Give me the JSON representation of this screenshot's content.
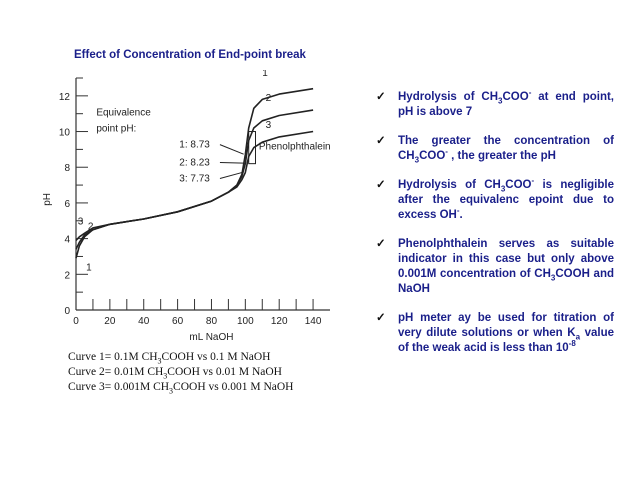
{
  "title": "Effect of Concentration of End-point break",
  "chart_data": {
    "type": "line",
    "xlabel": "mL NaOH",
    "ylabel": "pH",
    "xlim": [
      0,
      150
    ],
    "ylim": [
      0,
      13
    ],
    "x_ticks": [
      "0",
      "20",
      "40",
      "60",
      "80",
      "100",
      "120",
      "140"
    ],
    "y_ticks": [
      "0",
      "2",
      "4",
      "6",
      "8",
      "10",
      "12"
    ],
    "series": [
      {
        "name": "1",
        "x": [
          0,
          2,
          5,
          10,
          20,
          40,
          60,
          80,
          90,
          95,
          98,
          100,
          102,
          105,
          110,
          120,
          140
        ],
        "y": [
          2.9,
          3.6,
          4.1,
          4.5,
          4.8,
          5.1,
          5.5,
          6.1,
          6.6,
          7.0,
          7.6,
          8.7,
          10.2,
          11.3,
          11.8,
          12.1,
          12.4
        ]
      },
      {
        "name": "2",
        "x": [
          0,
          2,
          5,
          10,
          20,
          40,
          60,
          80,
          90,
          95,
          98,
          100,
          102,
          105,
          110,
          120,
          140
        ],
        "y": [
          3.4,
          3.8,
          4.2,
          4.5,
          4.8,
          5.1,
          5.5,
          6.1,
          6.6,
          7.0,
          7.5,
          8.2,
          9.5,
          10.2,
          10.6,
          10.9,
          11.2
        ]
      },
      {
        "name": "3",
        "x": [
          0,
          2,
          5,
          10,
          20,
          40,
          60,
          80,
          90,
          95,
          98,
          100,
          102,
          105,
          110,
          120,
          140
        ],
        "y": [
          3.9,
          4.1,
          4.3,
          4.6,
          4.8,
          5.1,
          5.5,
          6.1,
          6.6,
          6.9,
          7.3,
          7.7,
          8.6,
          9.1,
          9.4,
          9.7,
          10.0
        ]
      }
    ],
    "annotations": {
      "equivalence_line1": "Equivalence",
      "equivalence_line2": "point pH:",
      "ph_values": [
        "1: 8.73",
        "2: 8.23",
        "3: 7.73"
      ],
      "indicator": "Phenolphthalein"
    }
  },
  "legend": [
    {
      "prefix": "Curve 1= 0.1M CH",
      "sub": "3",
      "suffix": "COOH vs 0.1 M NaOH"
    },
    {
      "prefix": "Curve 2= 0.01M CH",
      "sub": "3",
      "suffix": "COOH vs 0.01 M NaOH"
    },
    {
      "prefix": "Curve 3= 0.001M CH",
      "sub": "3",
      "suffix": "COOH vs 0.001 M NaOH"
    }
  ],
  "bullets": [
    {
      "check": "✓",
      "segments": [
        {
          "t": "Hydrolysis of CH"
        },
        {
          "t": "3",
          "sub": true
        },
        {
          "t": "COO"
        },
        {
          "t": "-",
          "sup": true
        },
        {
          "t": " at end point, pH is above 7"
        }
      ]
    },
    {
      "check": "✓",
      "segments": [
        {
          "t": "The greater the concentration of CH"
        },
        {
          "t": "3",
          "sub": true
        },
        {
          "t": "COO"
        },
        {
          "t": "-",
          "sup": true
        },
        {
          "t": " , the greater the pH"
        }
      ]
    },
    {
      "check": "✓",
      "segments": [
        {
          "t": "Hydrolysis of CH"
        },
        {
          "t": "3",
          "sub": true
        },
        {
          "t": "COO"
        },
        {
          "t": "-",
          "sup": true
        },
        {
          "t": " is negligible after the equivalenc epoint due to excess OH"
        },
        {
          "t": "-",
          "sup": true
        },
        {
          "t": "."
        }
      ]
    },
    {
      "check": "✓",
      "segments": [
        {
          "t": "Phenolphthalein serves as suitable indicator in this case but only above 0.001M concentration of CH"
        },
        {
          "t": "3",
          "sub": true
        },
        {
          "t": "COOH and NaOH"
        }
      ]
    },
    {
      "check": "✓",
      "segments": [
        {
          "t": "pH meter ay be used for titration of very dilute solutions or when K"
        },
        {
          "t": "a",
          "sub": true
        },
        {
          "t": " value of the weak acid is less than 10"
        },
        {
          "t": "-8",
          "sup": true
        }
      ]
    }
  ]
}
